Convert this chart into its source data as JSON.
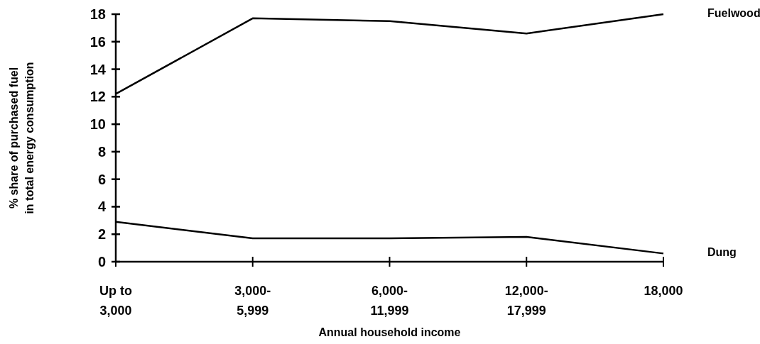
{
  "chart_data": {
    "type": "line",
    "xlabel": "Annual household income",
    "ylabel": "% share of purchased fuel\nin total energy consumption",
    "categories": [
      "Up to\n3,000",
      "3,000-\n5,999",
      "6,000-\n11,999",
      "12,000-\n17,999",
      "18,000"
    ],
    "series": [
      {
        "name": "Fuelwood",
        "color": "#000000",
        "values": [
          12.2,
          17.7,
          17.5,
          16.6,
          18.0
        ]
      },
      {
        "name": "Dung",
        "color": "#000000",
        "values": [
          2.9,
          1.7,
          1.7,
          1.8,
          0.6
        ]
      }
    ],
    "ylim": [
      0,
      18
    ],
    "yticks": [
      0,
      2,
      4,
      6,
      8,
      10,
      12,
      14,
      16,
      18
    ],
    "grid": false,
    "legend": false,
    "marker": "none",
    "line_style": "solid"
  }
}
